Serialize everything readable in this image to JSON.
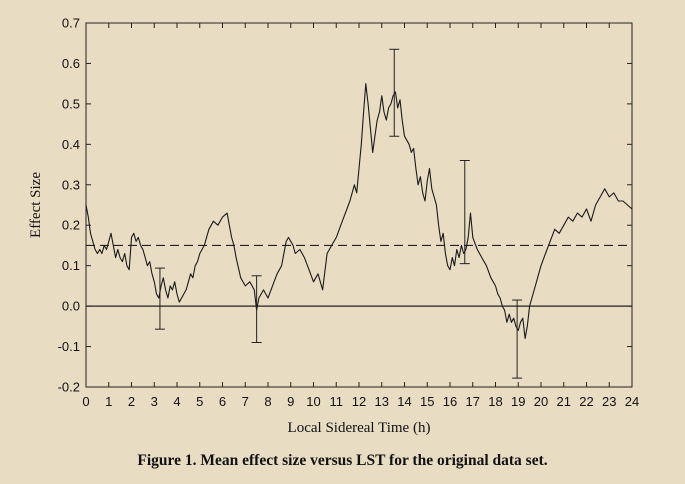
{
  "caption": "Figure 1.  Mean effect size versus LST for the original data set.",
  "chart_data": {
    "type": "line",
    "title": "",
    "xlabel": "Local Sidereal Time (h)",
    "ylabel": "Effect Size",
    "xlim": [
      0,
      24
    ],
    "ylim": [
      -0.2,
      0.7
    ],
    "xticks": [
      "0",
      "1",
      "2",
      "3",
      "4",
      "5",
      "6",
      "7",
      "8",
      "9",
      "10",
      "11",
      "12",
      "13",
      "14",
      "15",
      "16",
      "17",
      "18",
      "19",
      "20",
      "21",
      "22",
      "23",
      "24"
    ],
    "yticks": [
      "-0.2",
      "-0.1",
      "0.0",
      "0.1",
      "0.2",
      "0.3",
      "0.4",
      "0.5",
      "0.6",
      "0.7"
    ],
    "grid": false,
    "reference_lines": [
      {
        "style": "solid",
        "y": 0.0
      },
      {
        "style": "dashed",
        "y": 0.15
      }
    ],
    "series": [
      {
        "x": [
          0,
          0.1,
          0.2,
          0.3,
          0.4,
          0.5,
          0.6,
          0.7,
          0.8,
          0.9,
          1.0,
          1.1,
          1.2,
          1.3,
          1.4,
          1.5,
          1.6,
          1.7,
          1.8,
          1.9,
          2.0,
          2.1,
          2.2,
          2.3,
          2.4,
          2.5,
          2.6,
          2.7,
          2.8,
          2.9,
          3.0,
          3.1,
          3.2,
          3.3,
          3.4,
          3.5,
          3.6,
          3.7,
          3.8,
          3.9,
          4.0,
          4.1,
          4.2,
          4.3,
          4.4,
          4.5,
          4.6,
          4.7,
          4.8,
          4.9,
          5.0,
          5.2,
          5.4,
          5.6,
          5.8,
          6.0,
          6.2,
          6.4,
          6.5,
          6.6,
          6.8,
          7.0,
          7.2,
          7.4,
          7.5,
          7.6,
          7.8,
          8.0,
          8.2,
          8.4,
          8.6,
          8.7,
          8.8,
          8.9,
          9.0,
          9.1,
          9.2,
          9.4,
          9.6,
          9.8,
          10.0,
          10.2,
          10.4,
          10.6,
          10.8,
          11.0,
          11.2,
          11.4,
          11.6,
          11.8,
          11.9,
          12.0,
          12.1,
          12.2,
          12.3,
          12.4,
          12.5,
          12.6,
          12.7,
          12.8,
          12.9,
          13.0,
          13.1,
          13.2,
          13.3,
          13.4,
          13.5,
          13.6,
          13.7,
          13.8,
          13.9,
          14.0,
          14.1,
          14.2,
          14.3,
          14.4,
          14.5,
          14.6,
          14.7,
          14.8,
          14.9,
          15.0,
          15.1,
          15.2,
          15.3,
          15.4,
          15.5,
          15.6,
          15.7,
          15.8,
          15.9,
          16.0,
          16.1,
          16.2,
          16.3,
          16.4,
          16.5,
          16.6,
          16.7,
          16.8,
          16.9,
          17.0,
          17.2,
          17.4,
          17.6,
          17.8,
          18.0,
          18.1,
          18.2,
          18.3,
          18.4,
          18.5,
          18.6,
          18.7,
          18.8,
          18.9,
          19.0,
          19.1,
          19.2,
          19.3,
          19.4,
          19.5,
          19.6,
          19.7,
          19.8,
          19.9,
          20.0,
          20.2,
          20.4,
          20.6,
          20.8,
          21.0,
          21.2,
          21.4,
          21.6,
          21.8,
          22.0,
          22.2,
          22.4,
          22.6,
          22.8,
          23.0,
          23.2,
          23.4,
          23.6,
          23.8,
          24.0
        ],
        "y": [
          0.25,
          0.22,
          0.18,
          0.16,
          0.14,
          0.13,
          0.14,
          0.13,
          0.15,
          0.14,
          0.16,
          0.18,
          0.15,
          0.12,
          0.14,
          0.12,
          0.11,
          0.13,
          0.1,
          0.09,
          0.17,
          0.18,
          0.16,
          0.17,
          0.15,
          0.14,
          0.12,
          0.1,
          0.11,
          0.08,
          0.06,
          0.03,
          0.02,
          0.05,
          0.07,
          0.04,
          0.02,
          0.05,
          0.04,
          0.06,
          0.03,
          0.01,
          0.02,
          0.03,
          0.04,
          0.06,
          0.08,
          0.07,
          0.1,
          0.11,
          0.13,
          0.15,
          0.19,
          0.21,
          0.2,
          0.22,
          0.23,
          0.17,
          0.15,
          0.12,
          0.07,
          0.05,
          0.06,
          0.04,
          -0.01,
          0.02,
          0.04,
          0.02,
          0.05,
          0.08,
          0.1,
          0.13,
          0.16,
          0.17,
          0.16,
          0.15,
          0.13,
          0.14,
          0.12,
          0.09,
          0.06,
          0.08,
          0.04,
          0.13,
          0.15,
          0.17,
          0.2,
          0.23,
          0.26,
          0.3,
          0.28,
          0.34,
          0.4,
          0.48,
          0.55,
          0.5,
          0.44,
          0.38,
          0.42,
          0.46,
          0.48,
          0.52,
          0.48,
          0.46,
          0.49,
          0.5,
          0.52,
          0.53,
          0.49,
          0.51,
          0.46,
          0.42,
          0.41,
          0.4,
          0.38,
          0.39,
          0.34,
          0.3,
          0.32,
          0.28,
          0.26,
          0.31,
          0.34,
          0.29,
          0.27,
          0.25,
          0.2,
          0.16,
          0.18,
          0.13,
          0.1,
          0.09,
          0.12,
          0.1,
          0.14,
          0.12,
          0.15,
          0.13,
          0.14,
          0.17,
          0.23,
          0.17,
          0.14,
          0.12,
          0.1,
          0.07,
          0.05,
          0.03,
          0.02,
          0.0,
          -0.01,
          -0.04,
          -0.02,
          -0.04,
          -0.03,
          -0.05,
          -0.06,
          -0.04,
          -0.03,
          -0.08,
          -0.05,
          0.0,
          0.02,
          0.04,
          0.06,
          0.08,
          0.1,
          0.13,
          0.16,
          0.19,
          0.18,
          0.2,
          0.22,
          0.21,
          0.23,
          0.22,
          0.24,
          0.21,
          0.25,
          0.27,
          0.29,
          0.27,
          0.28,
          0.26,
          0.26,
          0.25,
          0.24
        ]
      }
    ],
    "error_bars": [
      {
        "x": 3.25,
        "y": 0.02,
        "low": -0.057,
        "high": 0.094
      },
      {
        "x": 7.5,
        "y": -0.01,
        "low": -0.09,
        "high": 0.075
      },
      {
        "x": 13.55,
        "y": 0.53,
        "low": 0.42,
        "high": 0.635
      },
      {
        "x": 16.65,
        "y": 0.23,
        "low": 0.105,
        "high": 0.36
      },
      {
        "x": 18.95,
        "y": -0.08,
        "low": -0.178,
        "high": 0.015
      }
    ]
  }
}
